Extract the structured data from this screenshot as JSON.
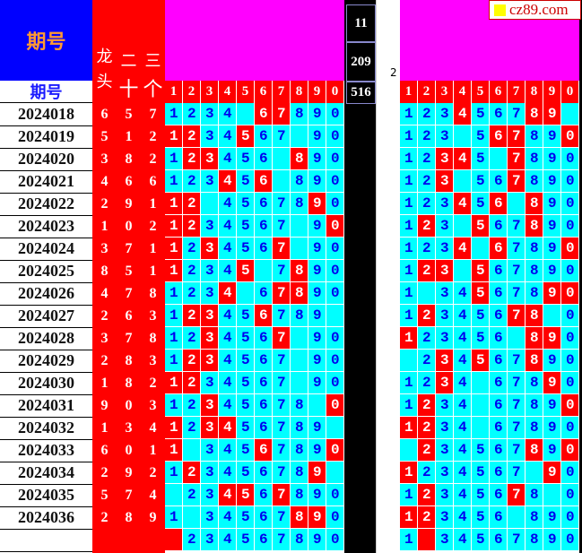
{
  "header": {
    "title": "期号",
    "period_label": "期号",
    "red_headers": [
      [
        "龙",
        "头"
      ],
      [
        "二",
        "十"
      ],
      [
        "三",
        "个"
      ]
    ],
    "digits": [
      "1",
      "2",
      "3",
      "4",
      "5",
      "6",
      "7",
      "8",
      "9",
      "0"
    ],
    "black_values": [
      "11",
      "209",
      "516"
    ],
    "gap_value": "2",
    "logo": "cz89.com"
  },
  "colors": {
    "cyan": "#00ffff",
    "red": "#ff0000",
    "magenta": "#ff00ff",
    "blue": "#0000ff",
    "digit_blue": "#0000ee"
  },
  "rows": [
    {
      "period": "2024018",
      "draw": [
        "6",
        "5",
        "7"
      ],
      "g1": "1234 67890",
      "h1": "0000011000",
      "g2": "123456789 ",
      "h2": "0001000110"
    },
    {
      "period": "2024019",
      "draw": [
        "5",
        "1",
        "2"
      ],
      "g1": "1234567 90",
      "h1": "1100100000",
      "g2": "123 567890",
      "h2": "0000011001"
    },
    {
      "period": "2024020",
      "draw": [
        "3",
        "8",
        "2"
      ],
      "g1": "123456 890",
      "h1": "0110000100",
      "g2": "12345 7890",
      "h2": "0011001000"
    },
    {
      "period": "2024021",
      "draw": [
        "4",
        "6",
        "6"
      ],
      "g1": "123456 890",
      "h1": "0001010000",
      "g2": "123 567890",
      "h2": "0010001000"
    },
    {
      "period": "2024022",
      "draw": [
        "2",
        "9",
        "1"
      ],
      "g1": "12 4567890",
      "h1": "1100000010",
      "g2": "123456 890",
      "h2": "0001010100"
    },
    {
      "period": "2024023",
      "draw": [
        "1",
        "0",
        "2"
      ],
      "g1": "1234567 90",
      "h1": "1100000001",
      "g2": "123 567890",
      "h2": "0100100100"
    },
    {
      "period": "2024024",
      "draw": [
        "3",
        "7",
        "1"
      ],
      "g1": "1234567 90",
      "h1": "1010001000",
      "g2": "1234 67890",
      "h2": "0001010001"
    },
    {
      "period": "2024025",
      "draw": [
        "8",
        "5",
        "1"
      ],
      "g1": "12345 7890",
      "h1": "1000100100",
      "g2": "123 567890",
      "h2": "0110100000"
    },
    {
      "period": "2024026",
      "draw": [
        "4",
        "7",
        "8"
      ],
      "g1": "1234 67890",
      "h1": "0001001100",
      "g2": "1 34567890",
      "h2": "0000100011"
    },
    {
      "period": "2024027",
      "draw": [
        "2",
        "6",
        "3"
      ],
      "g1": "123456789 ",
      "h1": "0110010000",
      "g2": "12345678 0",
      "h2": "0100001100"
    },
    {
      "period": "2024028",
      "draw": [
        "3",
        "7",
        "8"
      ],
      "g1": "1234567 90",
      "h1": "0010001000",
      "g2": "123456 890",
      "h2": "1000000110"
    },
    {
      "period": "2024029",
      "draw": [
        "2",
        "8",
        "3"
      ],
      "g1": "1234567 90",
      "h1": "0110000000",
      "g2": " 234567890",
      "h2": "0010100100"
    },
    {
      "period": "2024030",
      "draw": [
        "1",
        "8",
        "2"
      ],
      "g1": "1234567 90",
      "h1": "1100000000",
      "g2": "1234 67890",
      "h2": "0010000010"
    },
    {
      "period": "2024031",
      "draw": [
        "9",
        "0",
        "3"
      ],
      "g1": "12345678 0",
      "h1": "0010000001",
      "g2": "1234 67890",
      "h2": "0100000001"
    },
    {
      "period": "2024032",
      "draw": [
        "1",
        "3",
        "4"
      ],
      "g1": "123456789 ",
      "h1": "1011000000",
      "g2": "1234 67890",
      "h2": "1100000000"
    },
    {
      "period": "2024033",
      "draw": [
        "6",
        "0",
        "1"
      ],
      "g1": "1 34567890",
      "h1": "1000010001",
      "g2": " 234567890",
      "h2": "0100000101"
    },
    {
      "period": "2024034",
      "draw": [
        "2",
        "9",
        "2"
      ],
      "g1": "123456789 ",
      "h1": "0100000010",
      "g2": "1234567 90",
      "h2": "1000000010"
    },
    {
      "period": "2024035",
      "draw": [
        "5",
        "7",
        "4"
      ],
      "g1": " 234567890",
      "h1": "0001101000",
      "g2": "12345678 0",
      "h2": "0100001000"
    },
    {
      "period": "2024036",
      "draw": [
        "2",
        "8",
        "9"
      ],
      "g1": "1 34567890",
      "h1": "0000000110",
      "g2": "123456 890",
      "h2": "1100000000"
    },
    {
      "period": "",
      "draw": [
        "",
        "",
        ""
      ],
      "g1": " 234567890",
      "h1": "1000000000",
      "g2": "1 34567890",
      "h2": "0100000000"
    }
  ]
}
